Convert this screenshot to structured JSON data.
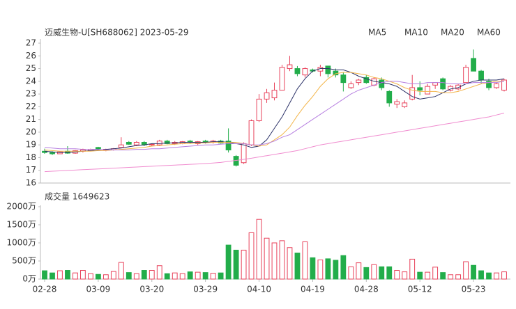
{
  "chart_data": [
    {
      "type": "candlestick",
      "title": "迈威生物-U[SH688062] 2023-05-29",
      "categories": [
        "02-28",
        null,
        null,
        null,
        null,
        null,
        null,
        "03-09",
        null,
        null,
        null,
        null,
        null,
        null,
        "03-20",
        null,
        null,
        null,
        null,
        null,
        null,
        "03-29",
        null,
        null,
        null,
        null,
        null,
        null,
        "04-10",
        null,
        null,
        null,
        null,
        null,
        null,
        "04-19",
        null,
        null,
        null,
        null,
        null,
        null,
        "04-28",
        null,
        null,
        null,
        null,
        null,
        null,
        "05-12",
        null,
        null,
        null,
        null,
        null,
        null,
        "05-23",
        null,
        null,
        null,
        null
      ],
      "open": [
        18.5,
        18.4,
        18.3,
        18.5,
        18.35,
        18.5,
        18.55,
        18.8,
        18.6,
        18.6,
        18.8,
        19.2,
        19.0,
        19.2,
        19.0,
        19.0,
        19.3,
        19.1,
        19.1,
        19.3,
        19.1,
        19.3,
        19.2,
        19.3,
        19.3,
        18.1,
        17.6,
        19.0,
        20.9,
        22.6,
        22.7,
        23.3,
        25.0,
        25.0,
        24.5,
        24.9,
        24.8,
        25.2,
        24.8,
        24.5,
        23.5,
        23.9,
        24.3,
        23.7,
        24.1,
        23.2,
        22.2,
        22.0,
        22.6,
        23.5,
        23.0,
        23.7,
        24.2,
        23.3,
        23.4,
        23.9,
        25.8,
        24.8,
        24.0,
        23.5,
        23.3
      ],
      "high": [
        18.7,
        18.5,
        18.5,
        18.9,
        18.6,
        18.7,
        18.7,
        18.85,
        18.7,
        18.75,
        19.6,
        19.3,
        19.3,
        19.3,
        19.1,
        19.4,
        19.4,
        19.3,
        19.3,
        19.4,
        19.3,
        19.4,
        19.4,
        19.4,
        20.3,
        18.2,
        19.2,
        21.0,
        23.0,
        23.4,
        23.9,
        25.3,
        26.0,
        25.2,
        25.1,
        25.0,
        25.3,
        25.2,
        25.0,
        24.7,
        24.0,
        24.2,
        24.5,
        24.3,
        24.3,
        23.3,
        22.6,
        22.5,
        24.5,
        24.0,
        23.8,
        23.9,
        24.3,
        23.7,
        23.8,
        25.3,
        26.5,
        24.9,
        24.2,
        23.9,
        24.2
      ],
      "low": [
        18.3,
        18.2,
        18.3,
        18.3,
        18.3,
        18.4,
        18.5,
        18.6,
        18.5,
        18.55,
        18.8,
        19.0,
        18.9,
        18.9,
        18.9,
        18.9,
        19.05,
        19.0,
        19.05,
        19.1,
        19.0,
        19.1,
        19.1,
        19.1,
        18.4,
        17.3,
        17.5,
        18.9,
        20.8,
        22.3,
        22.5,
        23.3,
        24.8,
        24.4,
        24.3,
        24.7,
        24.4,
        24.3,
        24.3,
        23.2,
        23.4,
        23.7,
        23.8,
        23.6,
        23.3,
        22.0,
        21.9,
        21.9,
        22.5,
        22.9,
        23.0,
        23.4,
        23.3,
        23.2,
        23.3,
        23.9,
        24.8,
        23.8,
        23.3,
        23.4,
        23.2
      ],
      "close": [
        18.4,
        18.3,
        18.45,
        18.35,
        18.55,
        18.6,
        18.65,
        18.7,
        18.65,
        18.7,
        19.0,
        19.05,
        19.2,
        19.0,
        19.05,
        19.3,
        19.1,
        19.2,
        19.25,
        19.2,
        19.25,
        19.2,
        19.3,
        19.15,
        18.6,
        17.4,
        19.1,
        20.9,
        22.6,
        23.1,
        23.3,
        25.1,
        25.3,
        24.6,
        25.0,
        24.8,
        25.1,
        24.6,
        24.5,
        23.9,
        23.8,
        24.1,
        23.9,
        24.2,
        23.5,
        22.3,
        22.4,
        22.3,
        23.5,
        23.3,
        23.6,
        23.9,
        23.4,
        23.6,
        23.7,
        25.1,
        24.8,
        24.1,
        23.5,
        23.8,
        24.1
      ],
      "up_color": "#e8415a",
      "down_color": "#22ad4a",
      "series": [
        {
          "name": "MA5",
          "color": "#2c3268",
          "values": [
            18.5,
            18.45,
            18.4,
            18.4,
            18.45,
            18.5,
            18.55,
            18.6,
            18.65,
            18.7,
            18.75,
            18.85,
            18.95,
            19.0,
            19.1,
            19.1,
            19.15,
            19.15,
            19.2,
            19.2,
            19.2,
            19.2,
            19.25,
            19.25,
            19.2,
            19.1,
            19.0,
            18.8,
            18.9,
            19.4,
            20.3,
            21.2,
            22.3,
            23.4,
            24.2,
            24.8,
            25.0,
            25.0,
            24.9,
            24.9,
            24.7,
            24.4,
            24.2,
            24.0,
            23.9,
            23.8,
            23.6,
            23.2,
            22.8,
            22.6,
            22.7,
            22.8,
            23.1,
            23.4,
            23.5,
            23.8,
            24.0,
            24.1,
            24.1,
            24.1,
            24.2
          ]
        },
        {
          "name": "MA10",
          "color": "#f3b54a",
          "values": [
            18.6,
            18.55,
            18.5,
            18.5,
            18.5,
            18.5,
            18.5,
            18.55,
            18.55,
            18.6,
            18.65,
            18.7,
            18.75,
            18.8,
            18.9,
            18.95,
            19.0,
            19.05,
            19.1,
            19.1,
            19.15,
            19.15,
            19.2,
            19.2,
            19.2,
            19.2,
            19.1,
            19.0,
            18.9,
            19.0,
            19.4,
            19.8,
            20.4,
            21.3,
            22.1,
            22.8,
            23.6,
            24.2,
            24.6,
            24.7,
            24.7,
            24.6,
            24.5,
            24.3,
            24.2,
            24.0,
            23.8,
            23.5,
            23.3,
            23.2,
            23.2,
            23.2,
            23.1,
            23.1,
            23.2,
            23.4,
            23.6,
            23.8,
            23.9,
            24.0,
            24.0
          ]
        },
        {
          "name": "MA20",
          "color": "#b67fe0",
          "values": [
            18.8,
            18.75,
            18.7,
            18.7,
            18.7,
            18.65,
            18.65,
            18.65,
            18.6,
            18.6,
            18.6,
            18.6,
            18.65,
            18.65,
            18.7,
            18.7,
            18.75,
            18.8,
            18.85,
            18.9,
            18.95,
            19.0,
            19.0,
            19.05,
            19.1,
            19.1,
            19.1,
            19.0,
            19.0,
            19.1,
            19.3,
            19.6,
            19.8,
            20.2,
            20.6,
            21.0,
            21.4,
            21.8,
            22.2,
            22.6,
            23.0,
            23.3,
            23.5,
            23.7,
            23.9,
            24.0,
            24.0,
            23.9,
            23.8,
            23.8,
            23.9,
            23.9,
            23.9,
            23.8,
            23.8,
            23.8,
            23.9,
            23.9,
            23.9,
            23.9,
            24.0
          ]
        },
        {
          "name": "MA60",
          "color": "#f08ccf",
          "values": [
            16.9,
            16.93,
            16.96,
            16.99,
            17.02,
            17.05,
            17.08,
            17.11,
            17.14,
            17.17,
            17.2,
            17.23,
            17.26,
            17.29,
            17.32,
            17.35,
            17.38,
            17.41,
            17.44,
            17.47,
            17.5,
            17.53,
            17.57,
            17.62,
            17.7,
            17.78,
            17.86,
            17.95,
            18.05,
            18.15,
            18.25,
            18.35,
            18.45,
            18.55,
            18.7,
            18.85,
            19.0,
            19.1,
            19.2,
            19.3,
            19.4,
            19.5,
            19.6,
            19.7,
            19.8,
            19.9,
            20.0,
            20.1,
            20.2,
            20.3,
            20.4,
            20.5,
            20.6,
            20.7,
            20.8,
            20.9,
            21.0,
            21.1,
            21.2,
            21.35,
            21.5
          ]
        }
      ],
      "ylim": [
        16,
        27
      ],
      "yticks": [
        16,
        17,
        18,
        19,
        20,
        21,
        22,
        23,
        24,
        25,
        26,
        27
      ],
      "grid": false
    },
    {
      "type": "bar",
      "title": "成交量 1649623",
      "values": [
        230,
        170,
        230,
        240,
        170,
        240,
        150,
        130,
        120,
        210,
        460,
        180,
        150,
        240,
        240,
        370,
        150,
        170,
        150,
        200,
        190,
        180,
        160,
        170,
        940,
        800,
        800,
        1280,
        1650,
        1130,
        1000,
        1060,
        870,
        720,
        1030,
        590,
        530,
        560,
        520,
        650,
        340,
        450,
        320,
        400,
        340,
        340,
        240,
        200,
        550,
        190,
        190,
        330,
        180,
        120,
        120,
        480,
        380,
        230,
        170,
        170,
        200
      ],
      "ylim": [
        0,
        2000
      ],
      "yticks": [
        {
          "value": 0,
          "label": "0万"
        },
        {
          "value": 500,
          "label": "500万"
        },
        {
          "value": 1000,
          "label": "1000万"
        },
        {
          "value": 1500,
          "label": "1500万"
        },
        {
          "value": 2000,
          "label": "2000万"
        }
      ],
      "grid": false
    }
  ]
}
